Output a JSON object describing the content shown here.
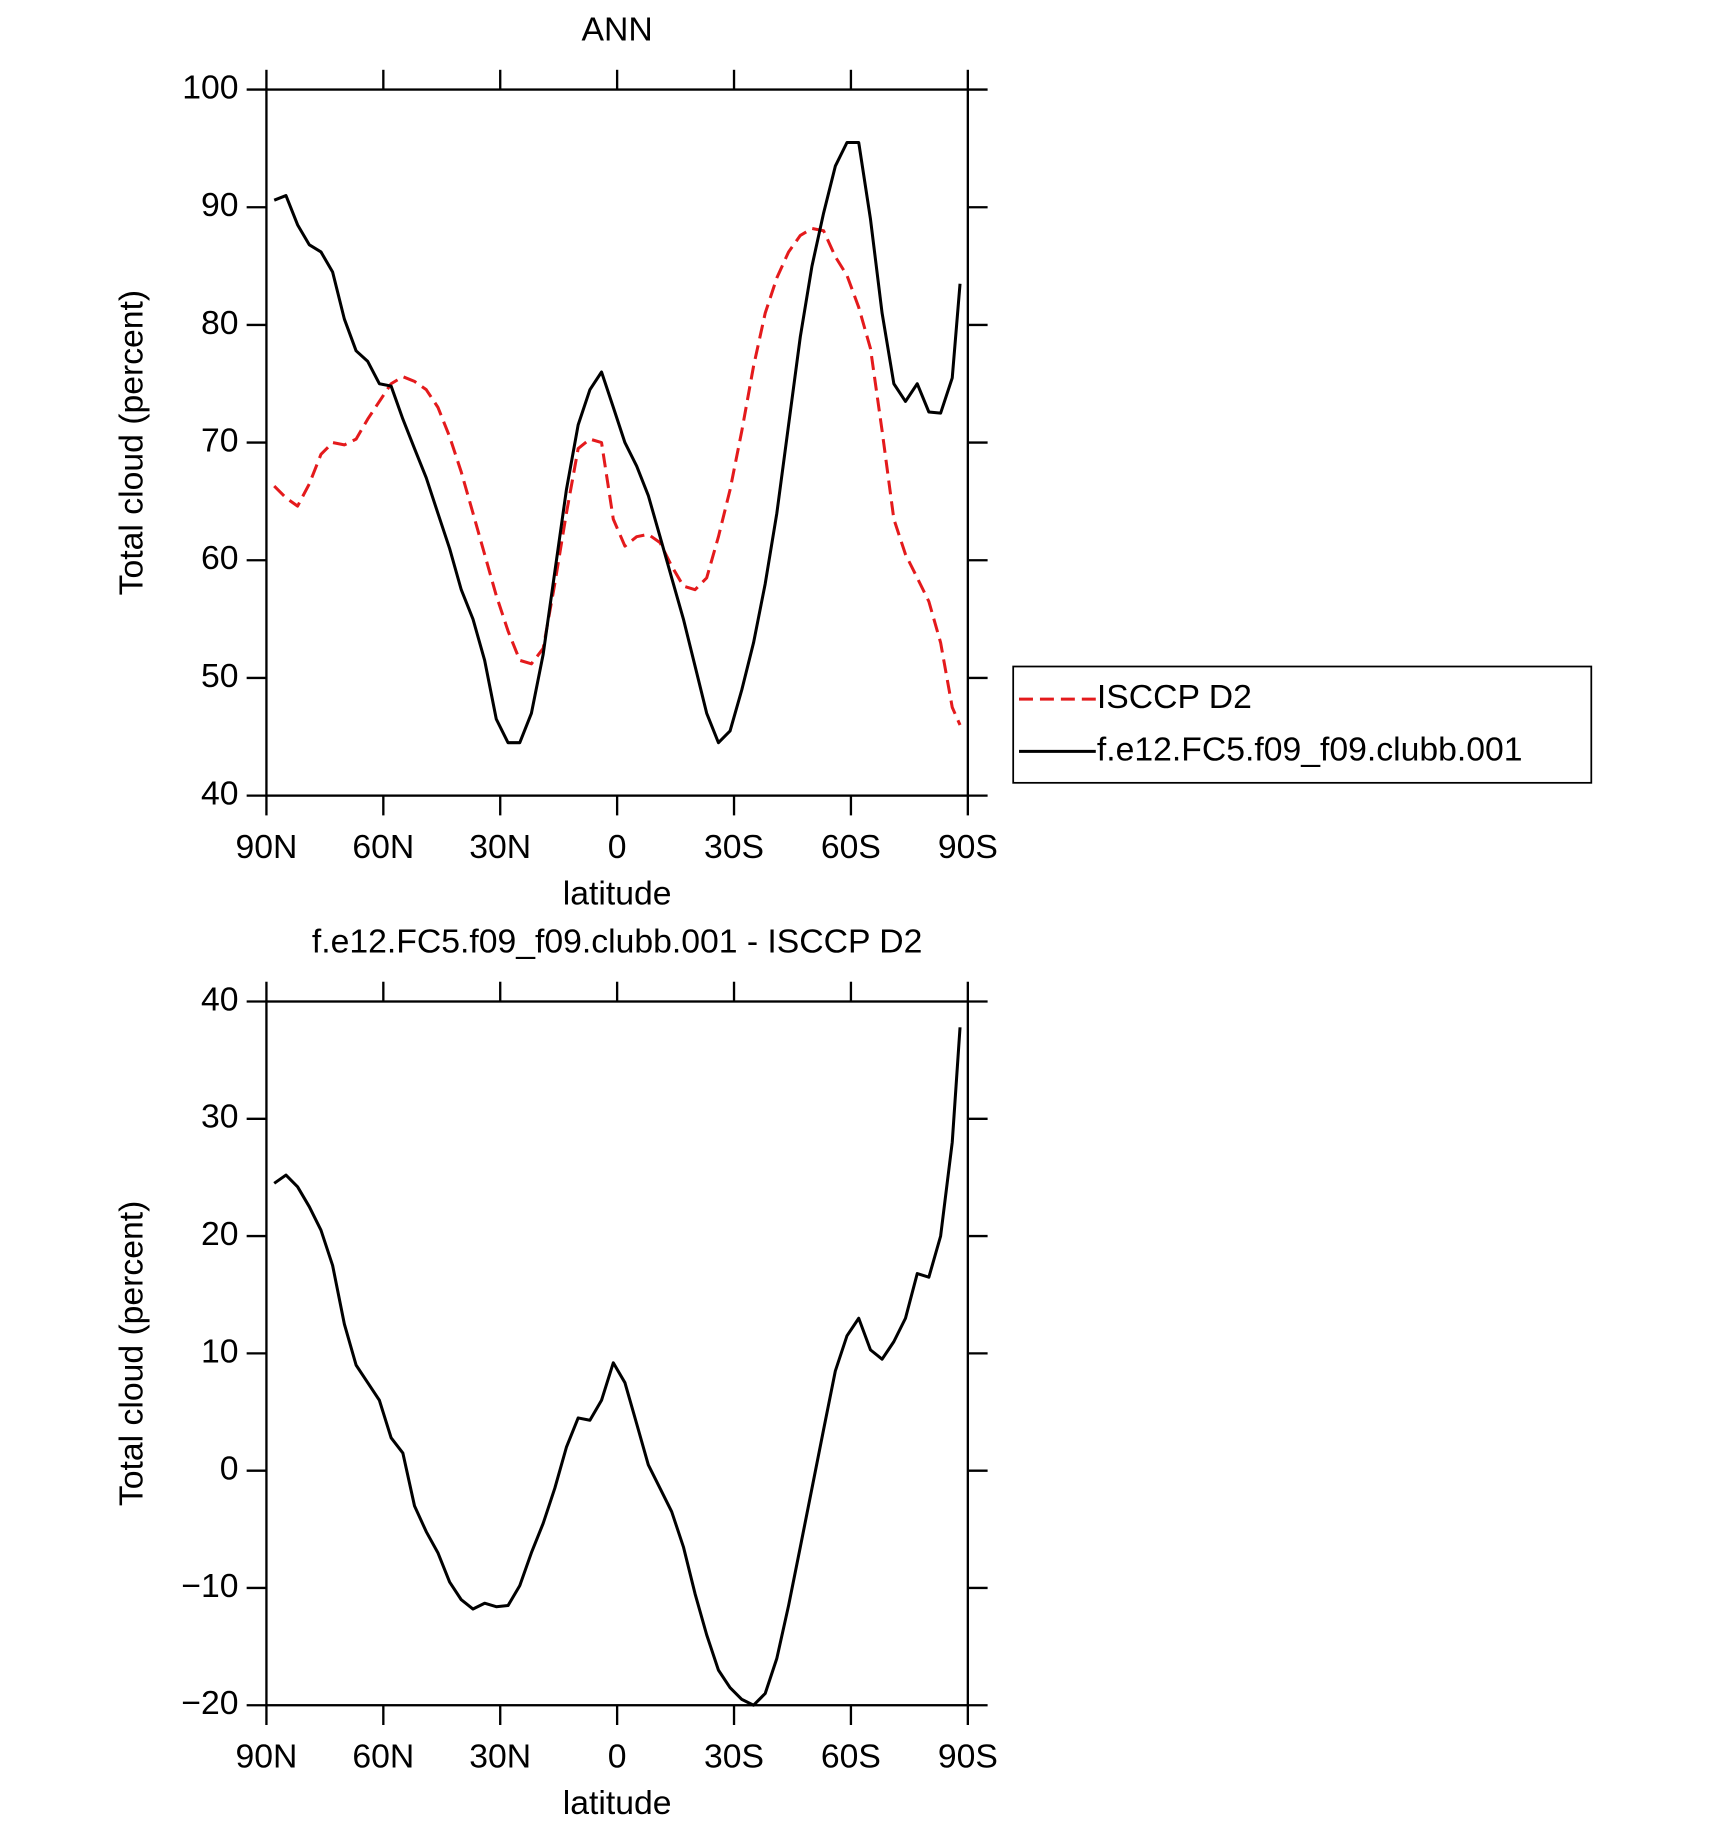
{
  "chart_data": [
    {
      "type": "line",
      "title": "ANN",
      "xlabel": "latitude",
      "ylabel": "Total cloud (percent)",
      "x": [
        88,
        85,
        82,
        79,
        76,
        73,
        70,
        67,
        64,
        61,
        58,
        55,
        52,
        49,
        46,
        43,
        40,
        37,
        34,
        31,
        28,
        25,
        22,
        19,
        16,
        13,
        10,
        7,
        4,
        1,
        -2,
        -5,
        -8,
        -11,
        -14,
        -17,
        -20,
        -23,
        -26,
        -29,
        -32,
        -35,
        -38,
        -41,
        -44,
        -47,
        -50,
        -53,
        -56,
        -59,
        -62,
        -65,
        -68,
        -71,
        -74,
        -77,
        -80,
        -83,
        -86,
        -88
      ],
      "xlim": [
        90,
        -90
      ],
      "xticks": [
        {
          "value": 90,
          "label": "90N"
        },
        {
          "value": 60,
          "label": "60N"
        },
        {
          "value": 30,
          "label": "30N"
        },
        0,
        {
          "value": -30,
          "label": "30S"
        },
        {
          "value": -60,
          "label": "60S"
        },
        {
          "value": -90,
          "label": "90S"
        }
      ],
      "ylim": [
        40,
        100
      ],
      "yticks": [
        40,
        50,
        60,
        70,
        80,
        90,
        100
      ],
      "series": [
        {
          "name": "ISCCP D2",
          "color": "#e41a1c",
          "dashed": true,
          "values": [
            66.3,
            65.3,
            64.6,
            66.5,
            69,
            70,
            69.8,
            70.3,
            72,
            73.5,
            75,
            75.6,
            75.2,
            74.5,
            73,
            70.5,
            67.5,
            64,
            60.5,
            57,
            54,
            51.5,
            51.2,
            52.5,
            58,
            64,
            69.5,
            70.3,
            70,
            63.5,
            61.2,
            62,
            62.2,
            61.5,
            59.5,
            57.8,
            57.5,
            58.5,
            62,
            66,
            71,
            76.5,
            81,
            84,
            86.2,
            87.6,
            88.2,
            88,
            85.8,
            84.2,
            81.5,
            78,
            71,
            63.5,
            60.5,
            58.5,
            56.5,
            53,
            47.5,
            46
          ]
        },
        {
          "name": "f.e12.FC5.f09_f09.clubb.001",
          "color": "#000000",
          "dashed": false,
          "values": [
            90.6,
            91,
            88.5,
            86.8,
            86.2,
            84.5,
            80.5,
            77.8,
            76.9,
            75,
            74.8,
            72,
            69.5,
            67,
            64,
            61,
            57.5,
            55,
            51.5,
            46.5,
            44.5,
            44.5,
            47,
            52,
            59,
            66,
            71.5,
            74.5,
            76,
            73,
            70,
            68,
            65.5,
            62,
            58.5,
            55,
            51,
            47,
            44.5,
            45.5,
            49,
            53,
            58,
            64,
            71.5,
            79,
            85,
            89.5,
            93.5,
            95.5,
            95.5,
            89,
            81,
            75,
            73.5,
            75,
            72.6,
            72.5,
            75.5,
            83.5
          ]
        }
      ]
    },
    {
      "type": "line",
      "title": "f.e12.FC5.f09_f09.clubb.001 - ISCCP D2",
      "xlabel": "latitude",
      "ylabel": "Total cloud (percent)",
      "x": [
        88,
        85,
        82,
        79,
        76,
        73,
        70,
        67,
        64,
        61,
        58,
        55,
        52,
        49,
        46,
        43,
        40,
        37,
        34,
        31,
        28,
        25,
        22,
        19,
        16,
        13,
        10,
        7,
        4,
        1,
        -2,
        -5,
        -8,
        -11,
        -14,
        -17,
        -20,
        -23,
        -26,
        -29,
        -32,
        -35,
        -38,
        -41,
        -44,
        -47,
        -50,
        -53,
        -56,
        -59,
        -62,
        -65,
        -68,
        -71,
        -74,
        -77,
        -80,
        -83,
        -86,
        -88
      ],
      "xlim": [
        90,
        -90
      ],
      "xticks": [
        {
          "value": 90,
          "label": "90N"
        },
        {
          "value": 60,
          "label": "60N"
        },
        {
          "value": 30,
          "label": "30N"
        },
        0,
        {
          "value": -30,
          "label": "30S"
        },
        {
          "value": -60,
          "label": "60S"
        },
        {
          "value": -90,
          "label": "90S"
        }
      ],
      "ylim": [
        -20,
        40
      ],
      "yticks": [
        {
          "value": -20,
          "label": "−20"
        },
        {
          "value": -10,
          "label": "−10"
        },
        0,
        10,
        20,
        30,
        40
      ],
      "series": [
        {
          "color": "#000000",
          "dashed": false,
          "values": [
            24.5,
            25.2,
            24.2,
            22.5,
            20.5,
            17.5,
            12.5,
            9,
            7.5,
            6,
            2.8,
            1.5,
            -3,
            -5.2,
            -7,
            -9.5,
            -11,
            -11.8,
            -11.3,
            -11.6,
            -11.5,
            -9.8,
            -7,
            -4.5,
            -1.5,
            2,
            4.5,
            4.3,
            6,
            9.2,
            7.5,
            4,
            0.5,
            -1.5,
            -3.5,
            -6.5,
            -10.5,
            -14,
            -17,
            -18.5,
            -19.5,
            -20,
            -19,
            -16,
            -11.5,
            -6.5,
            -1.5,
            3.5,
            8.5,
            11.5,
            13,
            10.3,
            9.5,
            11,
            13,
            16.8,
            16.5,
            20,
            28,
            37.8
          ]
        }
      ]
    }
  ]
}
